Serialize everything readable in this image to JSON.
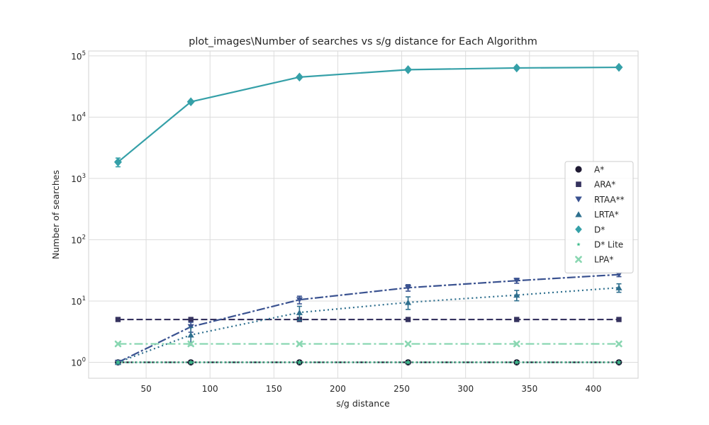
{
  "chart_data": {
    "type": "line",
    "title": "plot_images\\Number of searches vs s/g distance for Each Algorithm",
    "xlabel": "s/g distance",
    "ylabel": "Number of searches",
    "xlim": [
      5,
      435
    ],
    "ylim": [
      0.55,
      120000
    ],
    "yscale": "log",
    "xticks": [
      50,
      100,
      150,
      200,
      250,
      300,
      350,
      400
    ],
    "yticks": [
      {
        "value": 1,
        "base": "10",
        "exp": "0"
      },
      {
        "value": 10,
        "base": "10",
        "exp": "1"
      },
      {
        "value": 100,
        "base": "10",
        "exp": "2"
      },
      {
        "value": 1000,
        "base": "10",
        "exp": "3"
      },
      {
        "value": 10000,
        "base": "10",
        "exp": "4"
      },
      {
        "value": 100000,
        "base": "10",
        "exp": "5"
      }
    ],
    "grid": true,
    "legend_position": "center-right",
    "x": [
      28,
      85,
      170,
      255,
      340,
      420
    ],
    "series": [
      {
        "name": "A*",
        "values": [
          1,
          1,
          1,
          1,
          1,
          1
        ],
        "err": [
          0,
          0,
          0,
          0,
          0,
          0
        ],
        "color": "#1f1a33",
        "dash": "3,3",
        "marker": "circle"
      },
      {
        "name": "ARA*",
        "values": [
          5,
          5,
          5,
          5,
          5,
          5
        ],
        "err": [
          0,
          0,
          0,
          0,
          0,
          0
        ],
        "color": "#35325e",
        "dash": "9,4",
        "marker": "square"
      },
      {
        "name": "RTAA**",
        "values": [
          1,
          3.8,
          10.5,
          16.5,
          21.5,
          27
        ],
        "err": [
          0,
          0.7,
          1.5,
          2,
          2,
          2
        ],
        "color": "#3a5290",
        "dash": "12,3,3,3",
        "marker": "triangle-down"
      },
      {
        "name": "LRTA*",
        "values": [
          1,
          2.8,
          6.5,
          9.5,
          12.5,
          16.5
        ],
        "err": [
          0,
          0.9,
          1.7,
          2.2,
          2.4,
          2.6
        ],
        "color": "#2e6f8e",
        "dash": "2,4",
        "marker": "triangle-up"
      },
      {
        "name": "D*",
        "values": [
          1850,
          17800,
          45000,
          59500,
          63500,
          65000
        ],
        "err": [
          300,
          0,
          0,
          0,
          0,
          0
        ],
        "color": "#35a0a8",
        "dash": "",
        "marker": "diamond"
      },
      {
        "name": "D* Lite",
        "values": [
          1,
          1,
          1,
          1,
          1,
          1
        ],
        "err": [
          0,
          0,
          0,
          0,
          0,
          0
        ],
        "color": "#3fbb8c",
        "dash": "2,3",
        "marker": "star"
      },
      {
        "name": "LPA*",
        "values": [
          2,
          2,
          2,
          2,
          2,
          2
        ],
        "err": [
          0,
          0,
          0,
          0,
          0,
          0
        ],
        "color": "#8ad7b2",
        "dash": "12,4,3,4",
        "marker": "x"
      }
    ]
  }
}
